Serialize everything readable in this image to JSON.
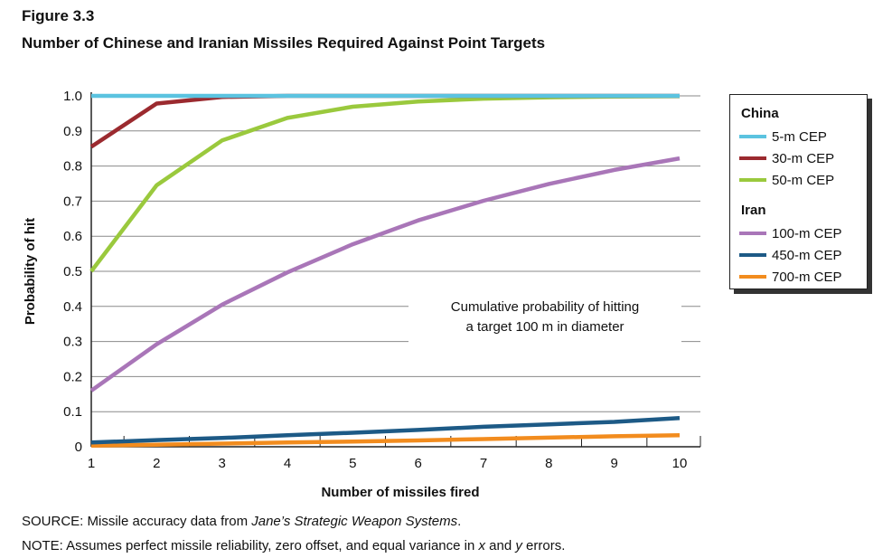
{
  "figure": {
    "label": "Figure 3.3",
    "title": "Number of Chinese and Iranian Missiles Required Against Point Targets"
  },
  "notes": {
    "source_prefix": "SOURCE: Missile accuracy data from ",
    "source_italic": "Jane’s Strategic Weapon Systems",
    "source_suffix": ".",
    "note_prefix": "NOTE: Assumes perfect missile reliability, zero offset, and equal variance in ",
    "note_x": "x",
    "note_mid": " and ",
    "note_y": "y",
    "note_suffix": " errors."
  },
  "legend": {
    "groups": [
      {
        "title": "China",
        "items": [
          "5-m CEP",
          "30-m CEP",
          "50-m CEP"
        ]
      },
      {
        "title": "Iran",
        "items": [
          "100-m CEP",
          "450-m CEP",
          "700-m CEP"
        ]
      }
    ],
    "placement": "right"
  },
  "chart_data": {
    "type": "line",
    "xlabel": "Number of missiles fired",
    "ylabel": "Probability of hit",
    "xlim": [
      1,
      10
    ],
    "ylim": [
      0,
      1.0
    ],
    "x": [
      1,
      2,
      3,
      4,
      5,
      6,
      7,
      8,
      9,
      10
    ],
    "xticklabels": [
      "1",
      "2",
      "3",
      "4",
      "5",
      "6",
      "7",
      "8",
      "9",
      "10"
    ],
    "yticks": [
      0,
      0.1,
      0.2,
      0.3,
      0.4,
      0.5,
      0.6,
      0.7,
      0.8,
      0.9,
      1.0
    ],
    "yticklabels": [
      "0",
      "0.1",
      "0.2",
      "0.3",
      "0.4",
      "0.5",
      "0.6",
      "0.7",
      "0.8",
      "0.9",
      "1.0"
    ],
    "grid": "horizontal",
    "annotation": [
      "Cumulative probability of hitting",
      "a target 100 m in diameter"
    ],
    "series": [
      {
        "name": "5-m CEP",
        "group": "China",
        "color": "#5bc3e0",
        "values": [
          1.0,
          1.0,
          1.0,
          1.0,
          1.0,
          1.0,
          1.0,
          1.0,
          1.0,
          1.0
        ]
      },
      {
        "name": "30-m CEP",
        "group": "China",
        "color": "#9b2a2f",
        "values": [
          0.855,
          0.978,
          0.997,
          1.0,
          1.0,
          1.0,
          1.0,
          1.0,
          1.0,
          1.0
        ]
      },
      {
        "name": "50-m CEP",
        "group": "China",
        "color": "#9ac93d",
        "values": [
          0.5,
          0.745,
          0.873,
          0.937,
          0.969,
          0.984,
          0.992,
          0.996,
          0.998,
          0.999
        ]
      },
      {
        "name": "100-m CEP",
        "group": "Iran",
        "color": "#a976b8",
        "values": [
          0.16,
          0.292,
          0.405,
          0.497,
          0.577,
          0.645,
          0.701,
          0.749,
          0.789,
          0.822
        ]
      },
      {
        "name": "450-m CEP",
        "group": "Iran",
        "color": "#1d5a86",
        "values": [
          0.012,
          0.019,
          0.025,
          0.033,
          0.04,
          0.048,
          0.057,
          0.064,
          0.071,
          0.082
        ]
      },
      {
        "name": "700-m CEP",
        "group": "Iran",
        "color": "#f28c1e",
        "values": [
          0.003,
          0.006,
          0.009,
          0.012,
          0.015,
          0.018,
          0.022,
          0.026,
          0.03,
          0.033
        ]
      }
    ]
  }
}
